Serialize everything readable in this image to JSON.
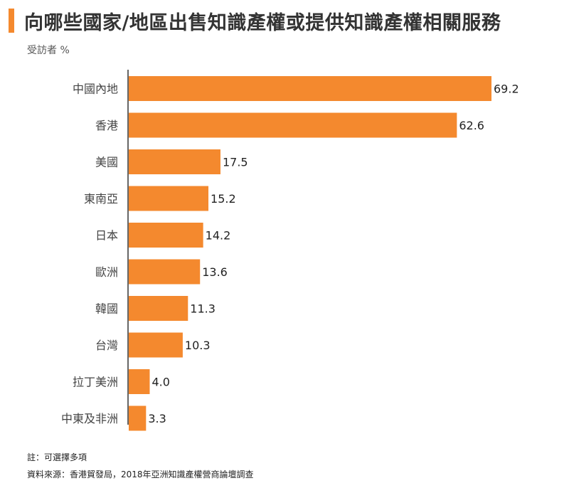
{
  "chart_data": {
    "type": "bar",
    "orientation": "horizontal",
    "title": "向哪些國家/地區出售知識產權或提供知識產權相關服務",
    "subtitle": "受訪者 %",
    "categories": [
      "中國內地",
      "香港",
      "美國",
      "東南亞",
      "日本",
      "歐洲",
      "韓國",
      "台灣",
      "拉丁美洲",
      "中東及非洲"
    ],
    "values": [
      69.2,
      62.6,
      17.5,
      15.2,
      14.2,
      13.6,
      11.3,
      10.3,
      4.0,
      3.3
    ],
    "value_labels": [
      "69.2",
      "62.6",
      "17.5",
      "15.2",
      "14.2",
      "13.6",
      "11.3",
      "10.3",
      "4.0",
      "3.3"
    ],
    "xlim": [
      0,
      69.2
    ],
    "grid": false,
    "bar_color": "#f4892e"
  },
  "notes": {
    "note": "註：可選擇多項",
    "source": "資料來源：香港貿發局，2018年亞洲知識產權營商論壇調查"
  }
}
